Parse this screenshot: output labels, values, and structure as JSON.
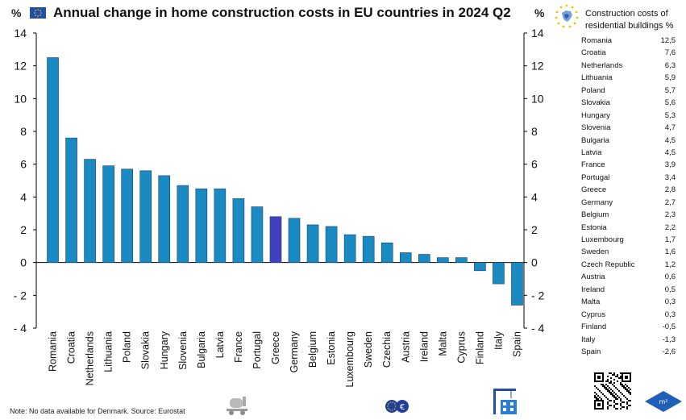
{
  "header": {
    "title": "Annual change in home construction costs in EU countries in 2024 Q2",
    "unit_left": "%",
    "unit_right": "%",
    "legend_title": "Construction costs of residential buildings %"
  },
  "table": {
    "rows": [
      {
        "country": "Romania",
        "value": "12,5"
      },
      {
        "country": "Croatia",
        "value": "7,6"
      },
      {
        "country": "Netherlands",
        "value": "6,3"
      },
      {
        "country": "Lithuania",
        "value": "5,9"
      },
      {
        "country": "Poland",
        "value": "5,7"
      },
      {
        "country": "Slovakia",
        "value": "5,6"
      },
      {
        "country": "Hungary",
        "value": "5,3"
      },
      {
        "country": "Slovenia",
        "value": "4,7"
      },
      {
        "country": "Bulgaria",
        "value": "4,5"
      },
      {
        "country": "Latvia",
        "value": "4,5"
      },
      {
        "country": "France",
        "value": "3,9"
      },
      {
        "country": "Portugal",
        "value": "3,4"
      },
      {
        "country": "Greece",
        "value": "2,8"
      },
      {
        "country": "Germany",
        "value": "2,7"
      },
      {
        "country": "Belgium",
        "value": "2,3"
      },
      {
        "country": "Estonia",
        "value": "2,2"
      },
      {
        "country": "Luxembourg",
        "value": "1,7"
      },
      {
        "country": "Sweden",
        "value": "1,6"
      },
      {
        "country": "Czech Republic",
        "value": "1,2"
      },
      {
        "country": "Austria",
        "value": "0,6"
      },
      {
        "country": "Ireland",
        "value": "0,5"
      },
      {
        "country": "Malta",
        "value": "0,3"
      },
      {
        "country": "Cyprus",
        "value": "0,3"
      },
      {
        "country": "Finland",
        "value": "-0,5"
      },
      {
        "country": "Italy",
        "value": "-1,3"
      },
      {
        "country": "Spain",
        "value": "-2,6"
      }
    ]
  },
  "footer": {
    "note": "Note: No data available for Denmark. Source: Eurostat"
  },
  "colors": {
    "bar": "#1a8bc2",
    "highlight": "#4040c0",
    "axis": "#000000"
  },
  "icons": [
    "eu-flag-icon",
    "eu-map-icon",
    "concrete-mixer-icon",
    "euro-coins-icon",
    "building-crane-icon",
    "qr-code-icon",
    "m2-logo-icon"
  ],
  "chart_data": {
    "type": "bar",
    "title": "Annual change in home construction costs in EU countries in 2024 Q2",
    "ylabel": "%",
    "categories": [
      "Romania",
      "Croatia",
      "Netherlands",
      "Lithuania",
      "Poland",
      "Slovakia",
      "Hungary",
      "Slovenia",
      "Bulgaria",
      "Latvia",
      "France",
      "Portugal",
      "Greece",
      "Germany",
      "Belgium",
      "Estonia",
      "Luxembourg",
      "Sweden",
      "Czechia",
      "Austria",
      "Ireland",
      "Malta",
      "Cyprus",
      "Finland",
      "Italy",
      "Spain"
    ],
    "values": [
      12.5,
      7.6,
      6.3,
      5.9,
      5.7,
      5.6,
      5.3,
      4.7,
      4.5,
      4.5,
      3.9,
      3.4,
      2.8,
      2.7,
      2.3,
      2.2,
      1.7,
      1.6,
      1.2,
      0.6,
      0.5,
      0.3,
      0.3,
      -0.5,
      -1.3,
      -2.6
    ],
    "highlight_category": "Greece",
    "ylim": [
      -4,
      14
    ],
    "yticks": [
      14,
      12,
      10,
      8,
      6,
      4,
      2,
      0,
      -2,
      -4
    ],
    "ytick_labels": [
      "14",
      "12",
      "10",
      "8",
      "6",
      "4",
      "2",
      "0",
      "- 2",
      "- 4"
    ],
    "grid": false
  }
}
